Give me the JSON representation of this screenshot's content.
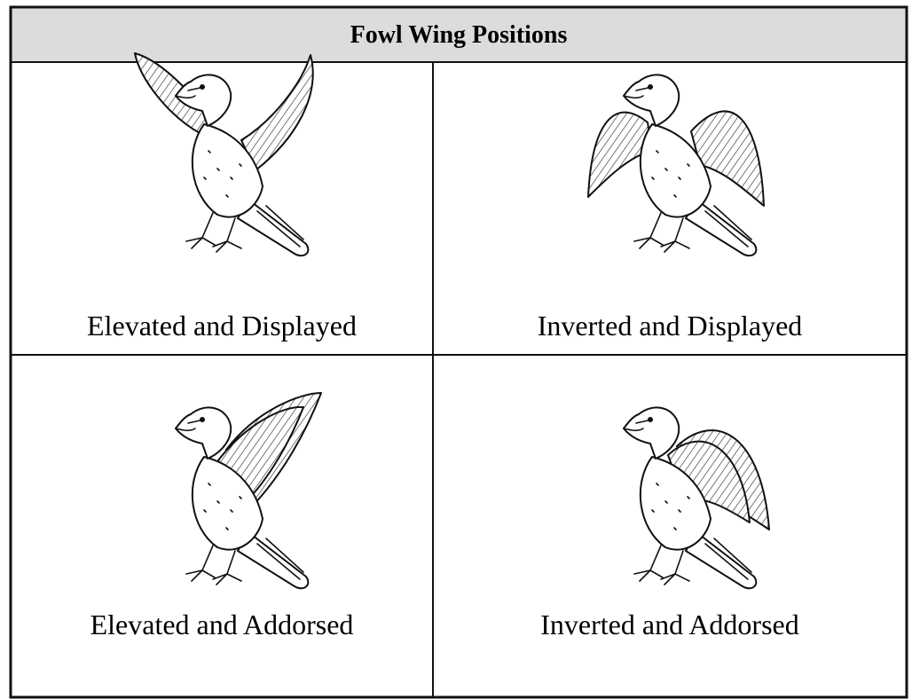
{
  "table": {
    "title": "Fowl Wing Positions",
    "rows": [
      [
        "Elevated and Displayed",
        "Inverted and Displayed"
      ],
      [
        "Elevated and Addorsed",
        "Inverted and Addorsed"
      ]
    ]
  }
}
